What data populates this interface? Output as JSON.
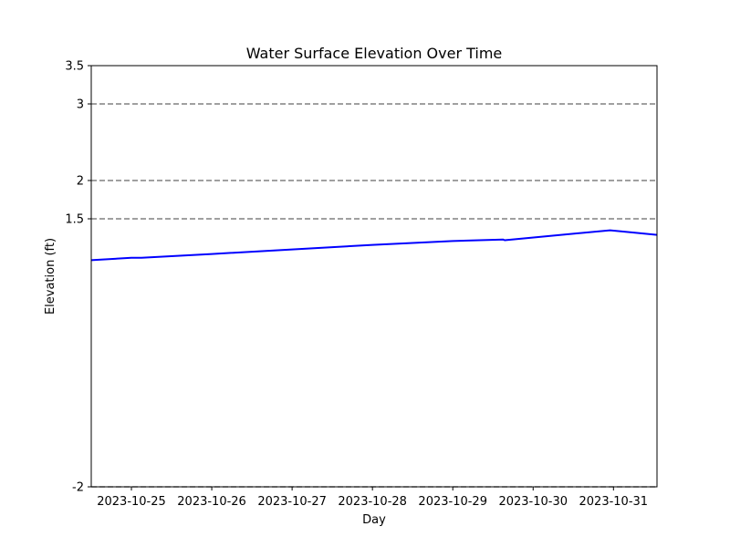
{
  "chart_data": {
    "type": "line",
    "title": "Water Surface Elevation Over Time",
    "xlabel": "Day",
    "ylabel": "Elevation (ft)",
    "x_range": [
      "2023-10-24T12:00",
      "2023-10-31T13:00"
    ],
    "ylim": [
      -2,
      3.5
    ],
    "y_ticks": [
      -2,
      1.5,
      2,
      3,
      3.5
    ],
    "x_ticks": [
      "2023-10-25",
      "2023-10-26",
      "2023-10-27",
      "2023-10-28",
      "2023-10-29",
      "2023-10-30",
      "2023-10-31"
    ],
    "reference_lines": [
      1.5,
      2,
      3,
      -2
    ],
    "reference_line_color": "#808080",
    "grid": false,
    "series": [
      {
        "color": "#0000ff",
        "points": [
          {
            "x": "2023-10-24T12:00",
            "y": 0.96
          },
          {
            "x": "2023-10-25T00:00",
            "y": 0.99
          },
          {
            "x": "2023-10-25T03:00",
            "y": 0.99
          },
          {
            "x": "2023-10-26T00:00",
            "y": 1.04
          },
          {
            "x": "2023-10-27T00:00",
            "y": 1.1
          },
          {
            "x": "2023-10-28T00:00",
            "y": 1.16
          },
          {
            "x": "2023-10-29T00:00",
            "y": 1.21
          },
          {
            "x": "2023-10-29T15:00",
            "y": 1.23
          },
          {
            "x": "2023-10-29T15:30",
            "y": 1.22
          },
          {
            "x": "2023-10-30T23:00",
            "y": 1.35
          },
          {
            "x": "2023-10-31T13:00",
            "y": 1.29
          }
        ]
      }
    ]
  }
}
